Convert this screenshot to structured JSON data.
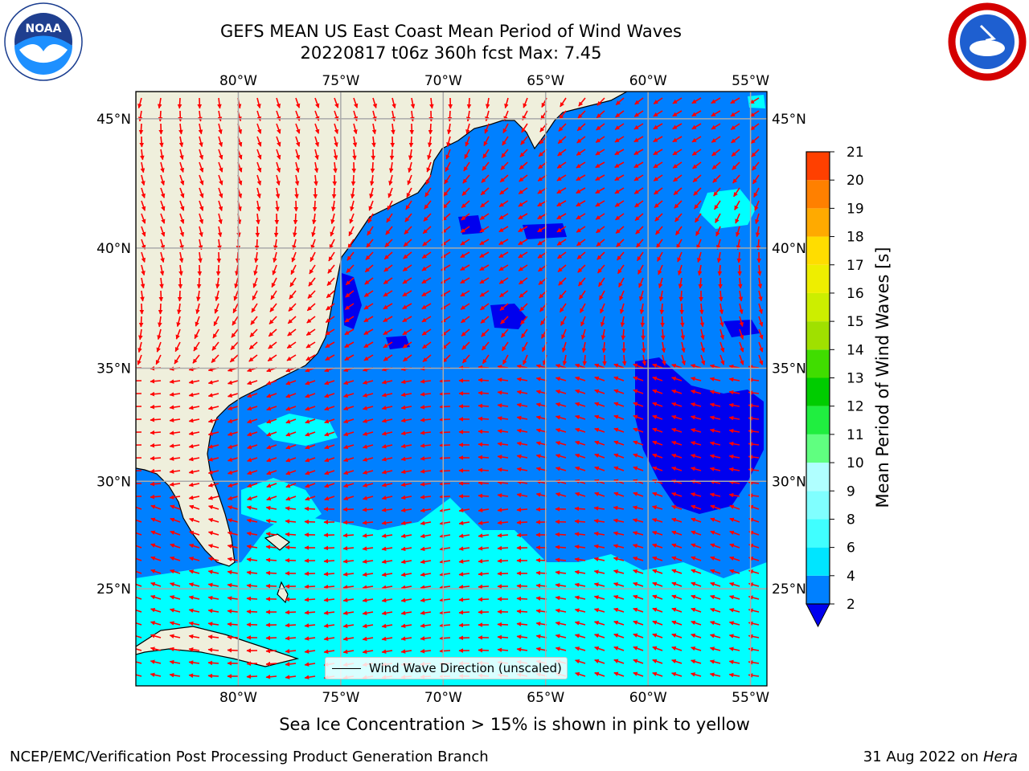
{
  "header": {
    "title_line1": "GEFS MEAN US East Coast Mean Period of Wind Waves",
    "title_line2": "20220817 t06z 360h fcst   Max: 7.45"
  },
  "logos": {
    "left": {
      "name": "noaa-logo",
      "text": "NOAA",
      "ring_text": "NATIONAL OCEANIC AND ATMOSPHERIC ADMINISTRATION · U.S. DEPARTMENT OF COMMERCE"
    },
    "right": {
      "name": "nws-logo",
      "ring_text": "NATIONAL WEATHER SERVICE"
    }
  },
  "map": {
    "lon_ticks": [
      "80°W",
      "75°W",
      "70°W",
      "65°W",
      "60°W",
      "55°W"
    ],
    "lat_ticks": [
      "45°N",
      "40°N",
      "35°N",
      "30°N",
      "25°N"
    ],
    "lon_values": [
      -80,
      -75,
      -70,
      -65,
      -60,
      -55
    ],
    "lat_values": [
      45,
      40,
      35,
      30,
      25
    ],
    "extent": {
      "lon_min": -85,
      "lon_max": -54.2,
      "lat_min": 20.3,
      "lat_max": 46
    },
    "grid": true,
    "land_color": "#efefdc",
    "ocean_color": "#0080ff",
    "arrow_color": "#ff0000",
    "field_max": 7.45,
    "legend_label": "Wind Wave Direction (unscaled)"
  },
  "colorbar": {
    "label": "Mean Period of Wind Waves [s]",
    "ticks": [
      "2",
      "4",
      "6",
      "8",
      "9",
      "10",
      "11",
      "12",
      "13",
      "14",
      "15",
      "16",
      "17",
      "18",
      "19",
      "20",
      "21"
    ],
    "colors": [
      "#0080ff",
      "#00e5ff",
      "#40ffff",
      "#80ffff",
      "#b0ffff",
      "#60ff80",
      "#20ee40",
      "#00cc00",
      "#40dd00",
      "#a0e000",
      "#ccee00",
      "#eeee00",
      "#ffdd00",
      "#ffaa00",
      "#ff8000",
      "#ff4000",
      "#ff0000"
    ],
    "under_color": "#0000ee"
  },
  "subtitle": "Sea Ice Concentration > 15% is shown in pink to yellow",
  "footer": {
    "left": "NCEP/EMC/Verification Post Processing Product Generation Branch",
    "right_date": "31 Aug 2022 on ",
    "right_host": "Hera"
  }
}
